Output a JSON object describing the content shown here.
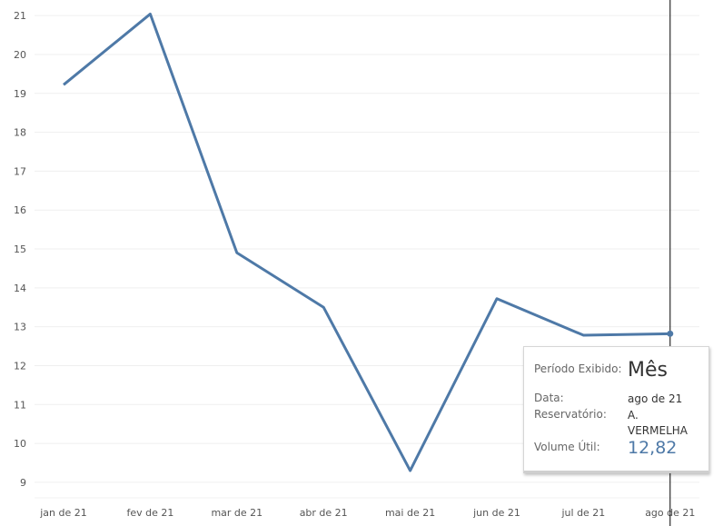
{
  "chart_data": {
    "type": "line",
    "categories": [
      "jan de 21",
      "fev de 21",
      "mar de 21",
      "abr de 21",
      "mai de 21",
      "jun de 21",
      "jul de 21",
      "ago de 21"
    ],
    "series": [
      {
        "values": [
          19.22,
          21.04,
          14.9,
          13.5,
          9.3,
          13.72,
          12.78,
          12.82
        ]
      }
    ],
    "y_ticks": [
      "9",
      "10",
      "11",
      "12",
      "13",
      "14",
      "15",
      "16",
      "17",
      "18",
      "19",
      "20",
      "21"
    ],
    "ylim": [
      8.6,
      21.4
    ],
    "grid": true,
    "line_color": "#4e79a7",
    "highlighted_category": "ago de 21"
  },
  "tooltip": {
    "periodo_label": "Período Exibido:",
    "periodo_value": "Mês",
    "data_label": "Data:",
    "data_value": "ago de 21",
    "reservatorio_label": "Reservatório:",
    "reservatorio_value_line1": "A.",
    "reservatorio_value_line2": "VERMELHA",
    "volume_label": "Volume Útil:",
    "volume_value": "12,82"
  }
}
